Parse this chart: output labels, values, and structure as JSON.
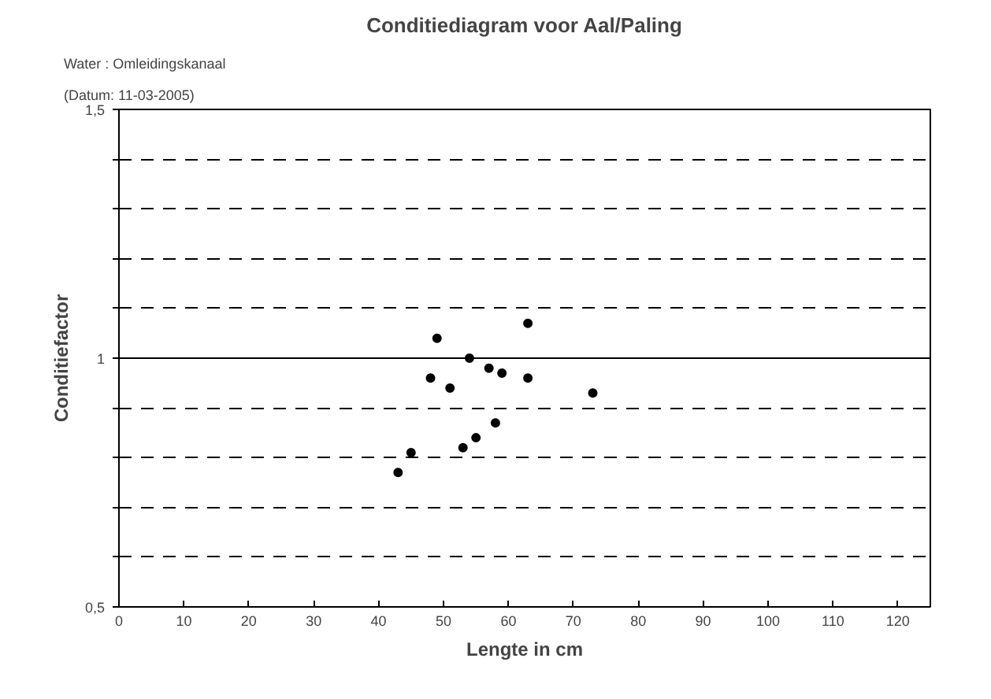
{
  "chart_data": {
    "type": "scatter",
    "title": "Conditiediagram voor Aal/Paling",
    "xlabel": "Lengte in cm",
    "ylabel": "Conditiefactor",
    "annotations": [
      "Water     : Omleidingskanaal",
      "(Datum: 11-03-2005)"
    ],
    "x": [
      43,
      45,
      48,
      49,
      51,
      53,
      54,
      55,
      57,
      58,
      59,
      63,
      63,
      73
    ],
    "values": [
      0.77,
      0.81,
      0.96,
      1.04,
      0.94,
      0.82,
      1.0,
      0.84,
      0.98,
      0.87,
      0.97,
      1.07,
      0.96,
      0.93
    ],
    "color": "#000000",
    "marker": "circle",
    "xlim": [
      0,
      125
    ],
    "xticks": [
      0,
      10,
      20,
      30,
      40,
      50,
      60,
      70,
      80,
      90,
      100,
      110,
      120
    ],
    "ylim": [
      0.5,
      1.5
    ],
    "yticks": [
      {
        "value": 0.5,
        "label": "0,5"
      },
      {
        "value": 0.6,
        "label": null
      },
      {
        "value": 0.7,
        "label": null
      },
      {
        "value": 0.8,
        "label": null
      },
      {
        "value": 0.9,
        "label": null
      },
      {
        "value": 1,
        "label": "1"
      },
      {
        "value": 1.1,
        "label": null
      },
      {
        "value": 1.2,
        "label": null
      },
      {
        "value": 1.3,
        "label": null
      },
      {
        "value": 1.4,
        "label": null
      },
      {
        "value": 1.5,
        "label": "1,5"
      }
    ],
    "grid": "y",
    "line_style": "dashed",
    "ref_lines": [
      {
        "axis": "y",
        "value": 1,
        "label": null,
        "color": "#000000",
        "line_style": "solid"
      }
    ]
  }
}
